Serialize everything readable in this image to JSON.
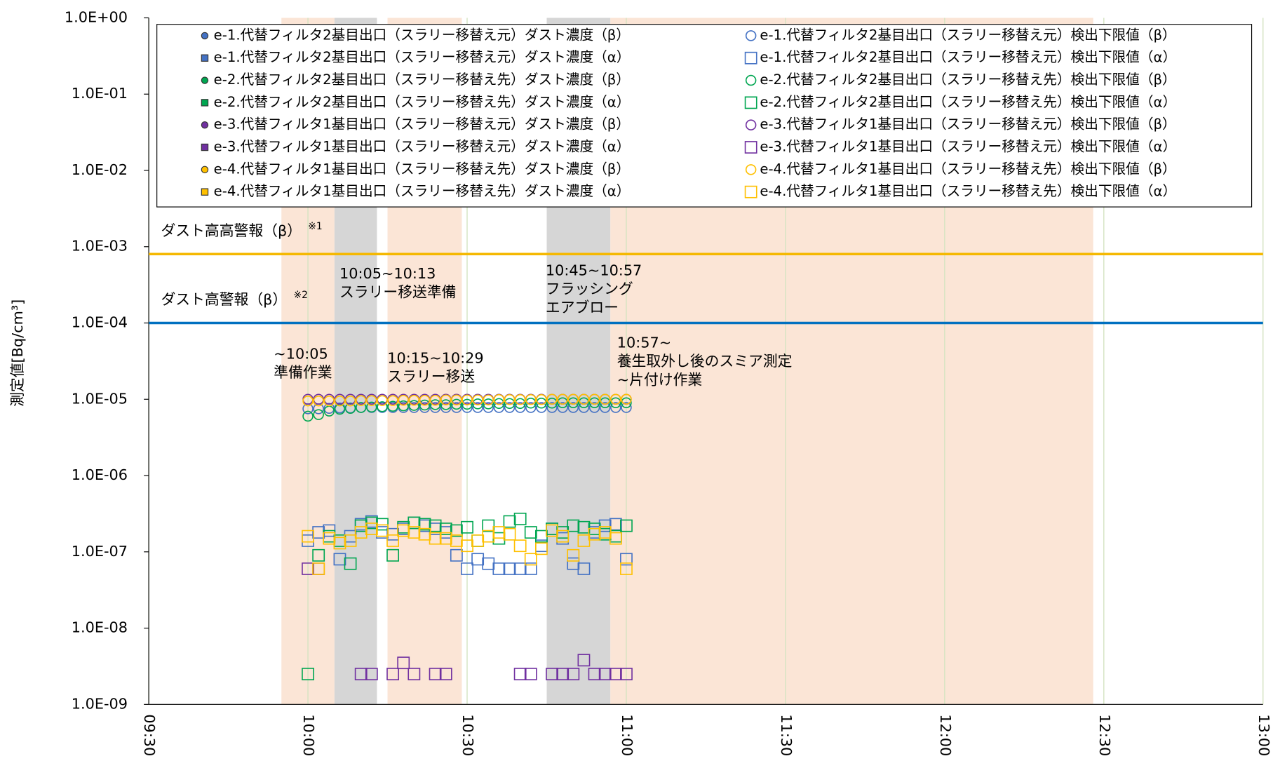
{
  "chart_data": {
    "type": "scatter",
    "y_label": "測定値[Bq/cm³]",
    "log_y": true,
    "grid": true,
    "ylim": [
      1e-09,
      1
    ],
    "yticks": [
      {
        "value": 1,
        "label": "1.0E+00"
      },
      {
        "value": 0.1,
        "label": "1.0E-01"
      },
      {
        "value": 0.01,
        "label": "1.0E-02"
      },
      {
        "value": 0.001,
        "label": "1.0E-03"
      },
      {
        "value": 0.0001,
        "label": "1.0E-04"
      },
      {
        "value": 1e-05,
        "label": "1.0E-05"
      },
      {
        "value": 1e-06,
        "label": "1.0E-06"
      },
      {
        "value": 1e-07,
        "label": "1.0E-07"
      },
      {
        "value": 1e-08,
        "label": "1.0E-08"
      },
      {
        "value": 1e-09,
        "label": "1.0E-09"
      }
    ],
    "xlim": [
      570,
      780
    ],
    "xticks": [
      {
        "value": 570,
        "label": "09:30"
      },
      {
        "value": 600,
        "label": "10:00"
      },
      {
        "value": 630,
        "label": "10:30"
      },
      {
        "value": 660,
        "label": "11:00"
      },
      {
        "value": 690,
        "label": "11:30"
      },
      {
        "value": 720,
        "label": "12:00"
      },
      {
        "value": 750,
        "label": "12:30"
      },
      {
        "value": 780,
        "label": "13:00"
      }
    ],
    "x": [
      600,
      602,
      604,
      606,
      608,
      610,
      612,
      614,
      616,
      618,
      620,
      622,
      624,
      626,
      628,
      630,
      632,
      634,
      636,
      638,
      640,
      642,
      644,
      646,
      648,
      650,
      652,
      654,
      656,
      658,
      660
    ],
    "thresholds": [
      {
        "label": "ダスト高高警報（β）",
        "note": "※1",
        "value": 0.0008,
        "color": "#f5b800"
      },
      {
        "label": "ダスト高警報（β）",
        "note": "※2",
        "value": 0.0001,
        "color": "#0070c0"
      }
    ],
    "periods": [
      {
        "start": 595,
        "end": 605,
        "color": "#fbe5d6",
        "lines": [
          "~10:05",
          "準備作業"
        ]
      },
      {
        "start": 605,
        "end": 613,
        "color": "#d6d6d6",
        "lines": [
          "10:05~10:13",
          "スラリー移送準備"
        ]
      },
      {
        "start": 615,
        "end": 629,
        "color": "#fbe5d6",
        "lines": [
          "10:15~10:29",
          "スラリー移送"
        ]
      },
      {
        "start": 645,
        "end": 657,
        "color": "#d6d6d6",
        "lines": [
          "10:45~10:57",
          "フラッシング",
          "エアブロー"
        ]
      },
      {
        "start": 657,
        "end": 748,
        "color": "#fbe5d6",
        "lines": [
          "10:57~",
          "養生取外し後のスミア測定",
          "~片付け作業"
        ]
      }
    ],
    "series": [
      {
        "name": "e-1.代替フィルタ2基目出口（スラリー移替え元）ダスト濃度（β）",
        "color": "#4472c4",
        "marker": "circle",
        "filled": true,
        "values": [
          null,
          null,
          null,
          null,
          null,
          null,
          null,
          null,
          null,
          null,
          null,
          null,
          null,
          null,
          null,
          null,
          null,
          null,
          null,
          null,
          null,
          null,
          null,
          null,
          null,
          null,
          null,
          null,
          null,
          null,
          null
        ]
      },
      {
        "name": "e-1.代替フィルタ2基目出口（スラリー移替え元）ダスト濃度（α）",
        "color": "#4472c4",
        "marker": "square",
        "filled": true,
        "values": [
          null,
          null,
          null,
          null,
          null,
          null,
          null,
          null,
          null,
          null,
          null,
          null,
          null,
          null,
          null,
          null,
          null,
          null,
          null,
          null,
          null,
          null,
          null,
          null,
          null,
          null,
          null,
          null,
          null,
          null,
          null
        ]
      },
      {
        "name": "e-2.代替フィルタ2基目出口（スラリー移替え先）ダスト濃度（β）",
        "color": "#00a651",
        "marker": "circle",
        "filled": true,
        "values": [
          null,
          null,
          null,
          null,
          null,
          null,
          null,
          null,
          null,
          null,
          null,
          null,
          null,
          null,
          null,
          null,
          null,
          null,
          null,
          null,
          null,
          null,
          null,
          null,
          null,
          null,
          null,
          null,
          null,
          null,
          null
        ]
      },
      {
        "name": "e-2.代替フィルタ2基目出口（スラリー移替え先）ダスト濃度（α）",
        "color": "#00a651",
        "marker": "square",
        "filled": true,
        "values": [
          null,
          null,
          null,
          null,
          null,
          null,
          null,
          null,
          null,
          null,
          null,
          null,
          null,
          null,
          null,
          null,
          null,
          null,
          null,
          null,
          null,
          null,
          null,
          null,
          null,
          null,
          null,
          null,
          null,
          null,
          null
        ]
      },
      {
        "name": "e-3.代替フィルタ1基目出口（スラリー移替え元）ダスト濃度（β）",
        "color": "#7030a0",
        "marker": "circle",
        "filled": true,
        "values": [
          null,
          null,
          null,
          null,
          null,
          null,
          null,
          null,
          null,
          null,
          null,
          null,
          null,
          null,
          null,
          null,
          null,
          null,
          null,
          null,
          null,
          null,
          null,
          null,
          null,
          null,
          null,
          null,
          null,
          null,
          null
        ]
      },
      {
        "name": "e-3.代替フィルタ1基目出口（スラリー移替え元）ダスト濃度（α）",
        "color": "#7030a0",
        "marker": "square",
        "filled": true,
        "values": [
          null,
          null,
          null,
          null,
          null,
          null,
          null,
          null,
          null,
          null,
          null,
          null,
          null,
          null,
          null,
          null,
          null,
          null,
          null,
          null,
          null,
          null,
          null,
          null,
          null,
          null,
          null,
          null,
          null,
          null,
          null
        ]
      },
      {
        "name": "e-4.代替フィルタ1基目出口（スラリー移替え先）ダスト濃度（β）",
        "color": "#ffc000",
        "marker": "circle",
        "filled": true,
        "values": [
          null,
          null,
          null,
          null,
          null,
          null,
          null,
          null,
          null,
          null,
          null,
          null,
          null,
          null,
          null,
          null,
          null,
          null,
          null,
          null,
          null,
          null,
          null,
          null,
          null,
          null,
          null,
          null,
          null,
          null,
          null
        ]
      },
      {
        "name": "e-4.代替フィルタ1基目出口（スラリー移替え先）ダスト濃度（α）",
        "color": "#ffc000",
        "marker": "square",
        "filled": true,
        "values": [
          null,
          null,
          null,
          null,
          null,
          null,
          null,
          null,
          null,
          null,
          null,
          null,
          null,
          null,
          null,
          null,
          null,
          null,
          null,
          null,
          null,
          null,
          null,
          null,
          null,
          null,
          null,
          null,
          null,
          null,
          null
        ]
      },
      {
        "name": "e-1.代替フィルタ2基目出口（スラリー移替え元）検出下限値（β）",
        "color": "#4472c4",
        "marker": "circle",
        "filled": false,
        "values": [
          7.5e-06,
          7.5e-06,
          7.6e-06,
          7.7e-06,
          7.7e-06,
          7.8e-06,
          7.8e-06,
          7.8e-06,
          7.8e-06,
          7.8e-06,
          7.8e-06,
          7.8e-06,
          7.8e-06,
          7.8e-06,
          7.8e-06,
          7.8e-06,
          7.8e-06,
          7.8e-06,
          7.8e-06,
          7.8e-06,
          7.8e-06,
          7.8e-06,
          7.8e-06,
          7.8e-06,
          7.8e-06,
          7.8e-06,
          7.8e-06,
          7.8e-06,
          7.8e-06,
          7.8e-06,
          7.8e-06
        ]
      },
      {
        "name": "e-1.代替フィルタ2基目出口（スラリー移替え元）検出下限値（α）",
        "color": "#4472c4",
        "marker": "square",
        "filled": false,
        "values": [
          1.4e-07,
          1.8e-07,
          1.9e-07,
          8e-08,
          1.6e-07,
          2.3e-07,
          2.5e-07,
          1.8e-07,
          1.7e-07,
          2e-07,
          2.4e-07,
          2.2e-07,
          2e-07,
          1.8e-07,
          9e-08,
          6e-08,
          8e-08,
          7e-08,
          6e-08,
          6e-08,
          6e-08,
          6e-08,
          1.2e-07,
          2e-07,
          1.5e-07,
          7e-08,
          6e-08,
          1.8e-07,
          2.2e-07,
          2.3e-07,
          8e-08
        ]
      },
      {
        "name": "e-2.代替フィルタ2基目出口（スラリー移替え先）検出下限値（β）",
        "color": "#00a651",
        "marker": "circle",
        "filled": false,
        "values": [
          6e-06,
          6.3e-06,
          7e-06,
          7.4e-06,
          7.6e-06,
          7.8e-06,
          7.9e-06,
          8e-06,
          8.1e-06,
          8.2e-06,
          8.3e-06,
          8.4e-06,
          8.5e-06,
          8.5e-06,
          8.6e-06,
          8.6e-06,
          8.7e-06,
          8.7e-06,
          8.8e-06,
          8.8e-06,
          8.8e-06,
          8.9e-06,
          8.9e-06,
          8.9e-06,
          9e-06,
          9e-06,
          9e-06,
          9e-06,
          9e-06,
          9e-06,
          9e-06
        ]
      },
      {
        "name": "e-2.代替フィルタ2基目出口（スラリー移替え先）検出下限値（α）",
        "color": "#00a651",
        "marker": "square",
        "filled": false,
        "values": [
          2.5e-09,
          9e-08,
          1.6e-07,
          1.4e-07,
          7e-08,
          2.2e-07,
          2.4e-07,
          2.3e-07,
          9e-08,
          2.1e-07,
          2.4e-07,
          2.3e-07,
          2.2e-07,
          2e-07,
          1.9e-07,
          2.1e-07,
          1.4e-07,
          2.2e-07,
          1.5e-07,
          2.5e-07,
          2.7e-07,
          1.8e-07,
          1.6e-07,
          2e-07,
          1.8e-07,
          2.2e-07,
          2.1e-07,
          2e-07,
          1.7e-07,
          1.6e-07,
          2.2e-07
        ]
      },
      {
        "name": "e-3.代替フィルタ1基目出口（スラリー移替え元）検出下限値（β）",
        "color": "#7030a0",
        "marker": "circle",
        "filled": false,
        "values": [
          1e-05,
          1e-05,
          1e-05,
          1e-05,
          1e-05,
          1e-05,
          1e-05,
          1e-05,
          1e-05,
          1e-05,
          1e-05,
          1e-05,
          1e-05,
          1e-05,
          1e-05,
          1e-05,
          1e-05,
          1e-05,
          1e-05,
          1e-05,
          1e-05,
          1e-05,
          1e-05,
          1e-05,
          1e-05,
          1e-05,
          1e-05,
          1e-05,
          1e-05,
          1e-05,
          1e-05
        ]
      },
      {
        "name": "e-3.代替フィルタ1基目出口（スラリー移替え元）検出下限値（α）",
        "color": "#7030a0",
        "marker": "square",
        "filled": false,
        "values": [
          6e-08,
          6e-08,
          null,
          null,
          null,
          2.5e-09,
          2.5e-09,
          null,
          2.5e-09,
          3.5e-09,
          2.5e-09,
          null,
          2.5e-09,
          2.5e-09,
          null,
          null,
          null,
          null,
          null,
          null,
          2.5e-09,
          2.5e-09,
          null,
          2.5e-09,
          2.5e-09,
          2.5e-09,
          3.8e-09,
          2.5e-09,
          2.5e-09,
          2.5e-09,
          2.5e-09
        ]
      },
      {
        "name": "e-4.代替フィルタ1基目出口（スラリー移替え先）検出下限値（β）",
        "color": "#ffc000",
        "marker": "circle",
        "filled": false,
        "values": [
          9.5e-06,
          9.5e-06,
          9.5e-06,
          9.5e-06,
          9.5e-06,
          9.6e-06,
          9.6e-06,
          9.6e-06,
          9.6e-06,
          9.7e-06,
          9.7e-06,
          9.7e-06,
          9.7e-06,
          9.8e-06,
          9.8e-06,
          9.8e-06,
          9.8e-06,
          9.8e-06,
          9.9e-06,
          9.9e-06,
          9.9e-06,
          9.9e-06,
          9.9e-06,
          1e-05,
          1e-05,
          1e-05,
          1e-05,
          1e-05,
          1e-05,
          1e-05,
          1e-05
        ]
      },
      {
        "name": "e-4.代替フィルタ1基目出口（スラリー移替え先）検出下限値（α）",
        "color": "#ffc000",
        "marker": "square",
        "filled": false,
        "values": [
          1.6e-07,
          6e-08,
          1.5e-07,
          1.3e-07,
          1.4e-07,
          1.8e-07,
          2e-07,
          1.9e-07,
          1.4e-07,
          1.9e-07,
          1.8e-07,
          1.7e-07,
          1.5e-07,
          1.5e-07,
          1.4e-07,
          1.2e-07,
          1.4e-07,
          1.6e-07,
          1.8e-07,
          1.7e-07,
          1.2e-07,
          8e-08,
          1.1e-07,
          1.9e-07,
          1.6e-07,
          9e-08,
          1.4e-07,
          1.7e-07,
          1.8e-07,
          1.5e-07,
          6e-08
        ]
      }
    ]
  }
}
